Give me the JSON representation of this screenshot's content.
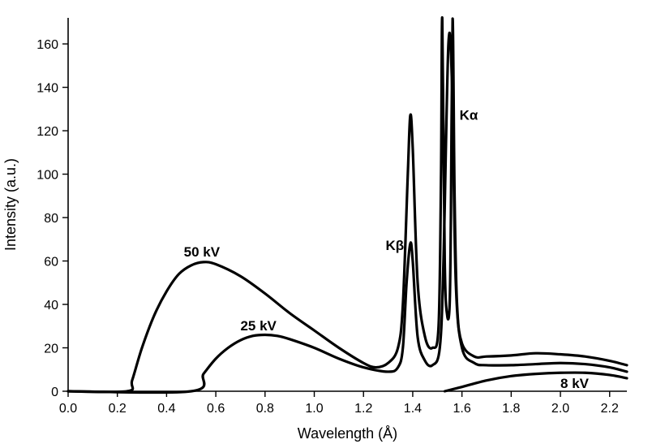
{
  "chart_data": {
    "type": "line",
    "title": "",
    "xlabel": "Wavelength (Å)",
    "ylabel": "Intensity (a.u.)",
    "xlim": [
      0.0,
      2.27
    ],
    "ylim": [
      0,
      172
    ],
    "x_ticks": [
      "0.0",
      "0.2",
      "0.4",
      "0.6",
      "0.8",
      "1.0",
      "1.2",
      "1.4",
      "1.6",
      "1.8",
      "2.0",
      "2.2"
    ],
    "y_ticks": [
      "0",
      "20",
      "40",
      "60",
      "80",
      "100",
      "120",
      "140",
      "160"
    ],
    "grid": false,
    "legend": "none",
    "series": [
      {
        "name": "50 kV",
        "x": [
          0.0,
          0.24,
          0.26,
          0.3,
          0.35,
          0.4,
          0.45,
          0.5,
          0.55,
          0.6,
          0.7,
          0.8,
          0.9,
          1.0,
          1.1,
          1.2,
          1.25,
          1.3,
          1.34,
          1.36,
          1.38,
          1.39,
          1.4,
          1.42,
          1.45,
          1.48,
          1.505,
          1.515,
          1.52,
          1.53,
          1.54,
          1.55,
          1.555,
          1.562,
          1.57,
          1.58,
          1.6,
          1.65,
          1.7,
          1.8,
          1.9,
          2.0,
          2.1,
          2.2,
          2.27
        ],
        "y": [
          0,
          0,
          5,
          20,
          35,
          46,
          54,
          58,
          59.5,
          58.5,
          53,
          45,
          36,
          28,
          20,
          13,
          11,
          13,
          20,
          40,
          100,
          127,
          112,
          50,
          25,
          20,
          30,
          100,
          172,
          60,
          35,
          40,
          80,
          172,
          90,
          40,
          22,
          16,
          16,
          16.5,
          17.5,
          17,
          16,
          14,
          12
        ]
      },
      {
        "name": "25 kV",
        "x": [
          0.0,
          0.5,
          0.55,
          0.6,
          0.65,
          0.7,
          0.75,
          0.8,
          0.85,
          0.9,
          1.0,
          1.1,
          1.2,
          1.3,
          1.34,
          1.36,
          1.375,
          1.39,
          1.4,
          1.42,
          1.45,
          1.48,
          1.51,
          1.525,
          1.545,
          1.56,
          1.575,
          1.6,
          1.65,
          1.7,
          1.8,
          1.9,
          2.0,
          2.1,
          2.2,
          2.27
        ],
        "y": [
          0,
          0,
          8,
          15,
          20,
          23.5,
          25.5,
          26,
          25.5,
          24,
          20,
          15,
          11,
          9,
          11,
          20,
          50,
          68,
          60,
          25,
          14,
          12,
          20,
          60,
          160,
          140,
          50,
          20,
          13,
          12,
          12,
          12.5,
          13,
          12.5,
          11,
          9
        ]
      },
      {
        "name": "8 kV",
        "x": [
          1.53,
          1.6,
          1.7,
          1.8,
          1.9,
          2.0,
          2.1,
          2.2,
          2.27
        ],
        "y": [
          0,
          2,
          5,
          7,
          8,
          8.5,
          8.5,
          7.5,
          6
        ]
      }
    ],
    "annotations": [
      {
        "text": "50 kV",
        "x": 0.47,
        "y": 62
      },
      {
        "text": "25 kV",
        "x": 0.7,
        "y": 28
      },
      {
        "text": "8 kV",
        "x": 2.0,
        "y": 1.5
      },
      {
        "text": "Kβ",
        "x": 1.29,
        "y": 65
      },
      {
        "text": "Kα",
        "x": 1.59,
        "y": 125
      }
    ]
  }
}
